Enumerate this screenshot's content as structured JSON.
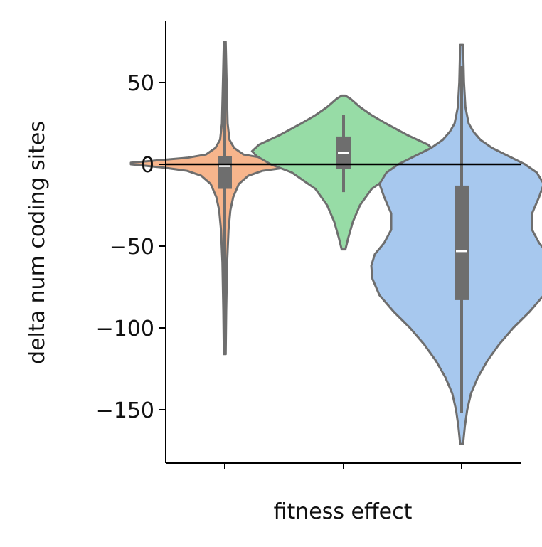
{
  "chart_data": {
    "type": "violin",
    "xlabel": "fitness effect",
    "ylabel": "delta num coding sites",
    "ylim": [
      -185,
      88
    ],
    "yticks": [
      50,
      0,
      -50,
      -100,
      -150
    ],
    "ytick_labels": [
      "50",
      "0",
      "−50",
      "−100",
      "−150"
    ],
    "reference_line_y": 0,
    "grid": false,
    "legend": "none",
    "series": [
      {
        "color": "#f7b58c",
        "whisker_min": -116,
        "whisker_max": 75,
        "q1": -15,
        "median": -1,
        "q3": 5,
        "density": [
          {
            "y": -116,
            "w": 0.004
          },
          {
            "y": -90,
            "w": 0.006
          },
          {
            "y": -60,
            "w": 0.01
          },
          {
            "y": -40,
            "w": 0.016
          },
          {
            "y": -28,
            "w": 0.024
          },
          {
            "y": -20,
            "w": 0.036
          },
          {
            "y": -12,
            "w": 0.06
          },
          {
            "y": -7,
            "w": 0.1
          },
          {
            "y": -4,
            "w": 0.16
          },
          {
            "y": -2,
            "w": 0.26
          },
          {
            "y": 0,
            "w": 0.4
          },
          {
            "y": 1,
            "w": 0.4
          },
          {
            "y": 2,
            "w": 0.32
          },
          {
            "y": 4,
            "w": 0.16
          },
          {
            "y": 6,
            "w": 0.08
          },
          {
            "y": 10,
            "w": 0.04
          },
          {
            "y": 15,
            "w": 0.02
          },
          {
            "y": 25,
            "w": 0.012
          },
          {
            "y": 50,
            "w": 0.008
          },
          {
            "y": 75,
            "w": 0.004
          }
        ]
      },
      {
        "color": "#97dca6",
        "whisker_min": -17,
        "whisker_max": 30,
        "q1": -3,
        "median": 7,
        "q3": 17,
        "density": [
          {
            "y": -52,
            "w": 0.008
          },
          {
            "y": -45,
            "w": 0.02
          },
          {
            "y": -35,
            "w": 0.04
          },
          {
            "y": -25,
            "w": 0.07
          },
          {
            "y": -15,
            "w": 0.12
          },
          {
            "y": -5,
            "w": 0.22
          },
          {
            "y": 0,
            "w": 0.31
          },
          {
            "y": 5,
            "w": 0.37
          },
          {
            "y": 8,
            "w": 0.39
          },
          {
            "y": 12,
            "w": 0.36
          },
          {
            "y": 18,
            "w": 0.27
          },
          {
            "y": 25,
            "w": 0.18
          },
          {
            "y": 30,
            "w": 0.12
          },
          {
            "y": 35,
            "w": 0.07
          },
          {
            "y": 40,
            "w": 0.03
          },
          {
            "y": 42,
            "w": 0.008
          }
        ]
      },
      {
        "color": "#a7c8ee",
        "whisker_min": -152,
        "whisker_max": 60,
        "q1": -83,
        "median": -53,
        "q3": -13,
        "density": [
          {
            "y": -171,
            "w": 0.006
          },
          {
            "y": -160,
            "w": 0.014
          },
          {
            "y": -150,
            "w": 0.024
          },
          {
            "y": -140,
            "w": 0.04
          },
          {
            "y": -130,
            "w": 0.07
          },
          {
            "y": -120,
            "w": 0.11
          },
          {
            "y": -110,
            "w": 0.16
          },
          {
            "y": -100,
            "w": 0.22
          },
          {
            "y": -90,
            "w": 0.29
          },
          {
            "y": -80,
            "w": 0.35
          },
          {
            "y": -70,
            "w": 0.38
          },
          {
            "y": -62,
            "w": 0.385
          },
          {
            "y": -55,
            "w": 0.37
          },
          {
            "y": -48,
            "w": 0.33
          },
          {
            "y": -40,
            "w": 0.3
          },
          {
            "y": -30,
            "w": 0.3
          },
          {
            "y": -20,
            "w": 0.33
          },
          {
            "y": -12,
            "w": 0.35
          },
          {
            "y": -5,
            "w": 0.32
          },
          {
            "y": 0,
            "w": 0.27
          },
          {
            "y": 5,
            "w": 0.2
          },
          {
            "y": 10,
            "w": 0.13
          },
          {
            "y": 15,
            "w": 0.08
          },
          {
            "y": 20,
            "w": 0.05
          },
          {
            "y": 25,
            "w": 0.03
          },
          {
            "y": 35,
            "w": 0.016
          },
          {
            "y": 50,
            "w": 0.01
          },
          {
            "y": 73,
            "w": 0.006
          }
        ]
      }
    ]
  }
}
